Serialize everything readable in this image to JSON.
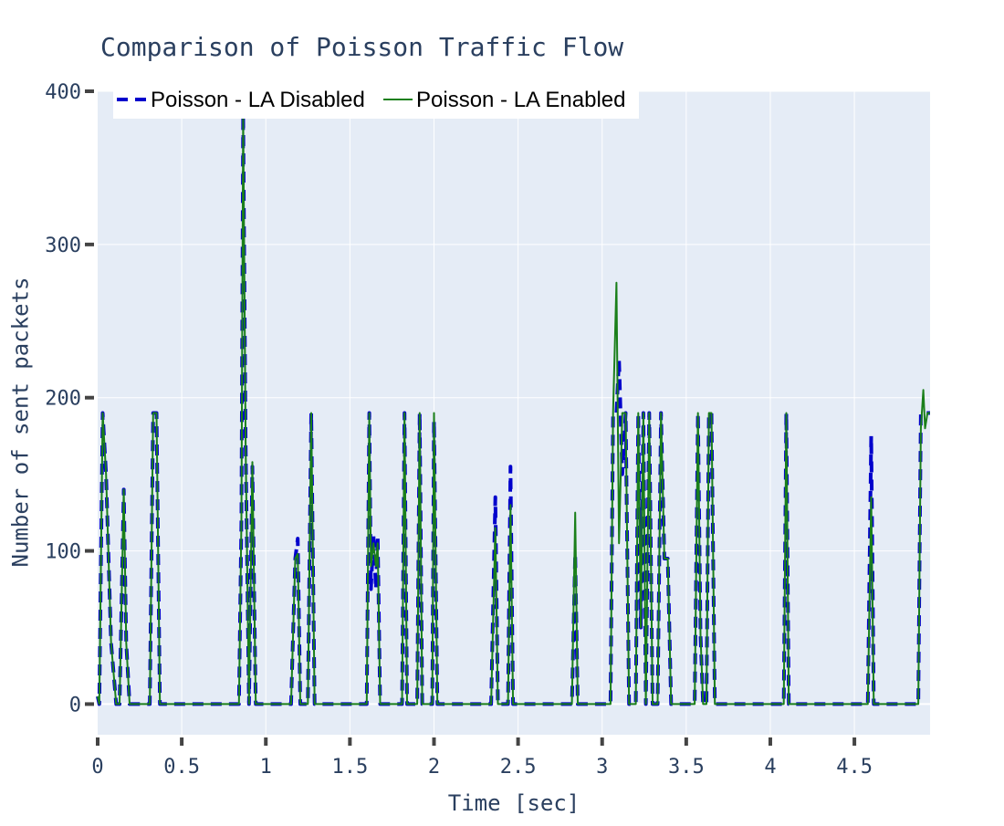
{
  "colors": {
    "plot_bg": "#e5ecf6",
    "grid": "#ffffff",
    "text": "#2a3f5f",
    "tick_mark": "#444444",
    "disabled": "#0000cc",
    "enabled": "#1a7f1a"
  },
  "chart_data": {
    "type": "line",
    "title": "Comparison of Poisson Traffic Flow",
    "xlabel": "Time [sec]",
    "ylabel": "Number of sent packets",
    "xlim": [
      0,
      4.95
    ],
    "ylim": [
      -20,
      400
    ],
    "x_ticks": [
      0,
      0.5,
      1,
      1.5,
      2,
      2.5,
      3,
      3.5,
      4,
      4.5
    ],
    "x_tick_labels": [
      "0",
      "0.5",
      "1",
      "1.5",
      "2",
      "2.5",
      "3",
      "3.5",
      "4",
      "4.5"
    ],
    "y_ticks": [
      0,
      100,
      200,
      300,
      400
    ],
    "y_tick_labels": [
      "0",
      "100",
      "200",
      "300",
      "400"
    ],
    "grid": true,
    "legend_position": "top-left",
    "series": [
      {
        "name": "Poisson - LA Disabled",
        "style": "dashed",
        "color": "#0000cc",
        "x": [
          0,
          0.01,
          0.03,
          0.05,
          0.08,
          0.11,
          0.13,
          0.155,
          0.17,
          0.19,
          0.31,
          0.33,
          0.35,
          0.37,
          0.84,
          0.855,
          0.865,
          0.88,
          0.9,
          0.92,
          0.94,
          0.96,
          1.15,
          1.175,
          1.19,
          1.205,
          1.25,
          1.27,
          1.29,
          1.6,
          1.615,
          1.625,
          1.64,
          1.655,
          1.665,
          1.68,
          1.81,
          1.825,
          1.84,
          1.9,
          1.915,
          1.93,
          1.99,
          2.0,
          2.02,
          2.34,
          2.365,
          2.38,
          2.4,
          2.44,
          2.455,
          2.47,
          2.82,
          2.84,
          2.855,
          3.05,
          3.065,
          3.085,
          3.1,
          3.12,
          3.14,
          3.16,
          3.2,
          3.215,
          3.23,
          3.245,
          3.26,
          3.28,
          3.3,
          3.33,
          3.35,
          3.37,
          3.39,
          3.41,
          3.55,
          3.57,
          3.585,
          3.6,
          3.62,
          3.635,
          3.65,
          3.67,
          4.08,
          4.095,
          4.11,
          4.58,
          4.6,
          4.615,
          4.63,
          4.88,
          4.895,
          4.91,
          4.95
        ],
        "y": [
          5,
          0,
          190,
          150,
          40,
          0,
          0,
          140,
          40,
          0,
          0,
          190,
          190,
          0,
          0,
          120,
          385,
          170,
          0,
          155,
          0,
          0,
          0,
          95,
          108,
          0,
          0,
          190,
          0,
          0,
          190,
          75,
          110,
          75,
          110,
          0,
          0,
          190,
          0,
          0,
          190,
          0,
          0,
          185,
          0,
          0,
          135,
          0,
          0,
          0,
          155,
          0,
          0,
          98,
          0,
          0,
          190,
          190,
          225,
          150,
          190,
          0,
          0,
          190,
          50,
          190,
          0,
          190,
          0,
          0,
          190,
          95,
          95,
          0,
          0,
          190,
          45,
          0,
          0,
          190,
          190,
          0,
          0,
          190,
          0,
          0,
          175,
          0,
          0,
          0,
          190,
          190,
          190
        ]
      },
      {
        "name": "Poisson - LA Enabled",
        "style": "solid",
        "color": "#1a7f1a",
        "x": [
          0,
          0.01,
          0.03,
          0.05,
          0.08,
          0.11,
          0.13,
          0.155,
          0.17,
          0.19,
          0.31,
          0.33,
          0.35,
          0.37,
          0.84,
          0.855,
          0.865,
          0.88,
          0.9,
          0.92,
          0.94,
          0.96,
          1.15,
          1.175,
          1.19,
          1.205,
          1.25,
          1.27,
          1.29,
          1.6,
          1.615,
          1.625,
          1.64,
          1.655,
          1.665,
          1.68,
          1.81,
          1.825,
          1.84,
          1.9,
          1.915,
          1.93,
          1.99,
          2.0,
          2.02,
          2.34,
          2.365,
          2.38,
          2.4,
          2.44,
          2.455,
          2.47,
          2.82,
          2.84,
          2.855,
          3.05,
          3.065,
          3.085,
          3.1,
          3.12,
          3.14,
          3.16,
          3.2,
          3.215,
          3.23,
          3.245,
          3.26,
          3.28,
          3.3,
          3.33,
          3.35,
          3.37,
          3.39,
          3.41,
          3.55,
          3.57,
          3.585,
          3.6,
          3.62,
          3.635,
          3.65,
          3.67,
          4.08,
          4.095,
          4.11,
          4.58,
          4.6,
          4.615,
          4.63,
          4.88,
          4.895,
          4.91,
          4.92,
          4.935,
          4.95
        ],
        "y": [
          5,
          0,
          190,
          150,
          40,
          0,
          0,
          140,
          40,
          0,
          0,
          190,
          190,
          0,
          0,
          120,
          385,
          170,
          0,
          158,
          0,
          0,
          0,
          95,
          98,
          0,
          0,
          190,
          0,
          0,
          190,
          90,
          105,
          90,
          105,
          0,
          0,
          190,
          0,
          0,
          190,
          0,
          0,
          190,
          0,
          0,
          115,
          0,
          0,
          0,
          130,
          0,
          0,
          125,
          0,
          0,
          190,
          275,
          105,
          190,
          190,
          0,
          0,
          190,
          50,
          190,
          0,
          190,
          0,
          0,
          190,
          95,
          95,
          0,
          0,
          190,
          45,
          0,
          0,
          190,
          190,
          0,
          0,
          190,
          0,
          0,
          135,
          0,
          0,
          0,
          180,
          205,
          180,
          190,
          190
        ]
      }
    ]
  }
}
